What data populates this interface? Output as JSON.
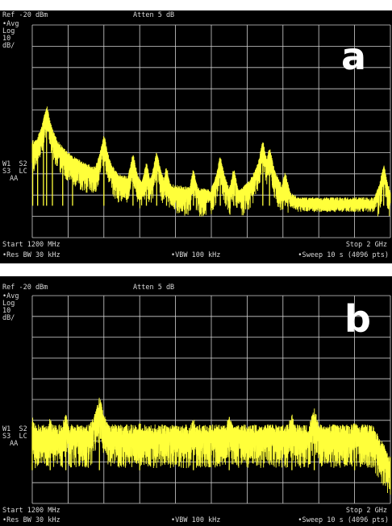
{
  "panels": [
    {
      "letter": "a",
      "ref": "Ref -20 dBm",
      "atten": "Atten 5 dB",
      "avg": "•Avg",
      "log": "Log",
      "scale_num": "10",
      "scale_unit": "dB/",
      "w1s2": "W1  S2",
      "s3lc": "S3  LC",
      "aa": "AA",
      "start": "Start 1200 MHz",
      "stop": "Stop 2 GHz",
      "rbw": "•Res BW 30 kHz",
      "vbw": "•VBW 100 kHz",
      "sweep": "•Sweep 10 s (4096 pts)"
    },
    {
      "letter": "b",
      "ref": "Ref -20 dBm",
      "atten": "Atten 5 dB",
      "avg": "•Avg",
      "log": "Log",
      "scale_num": "10",
      "scale_unit": "dB/",
      "w1s2": "W1  S2",
      "s3lc": "S3  LC",
      "aa": "AA",
      "start": "Start 1200 MHz",
      "stop": "Stop 2 GHz",
      "rbw": "•Res BW 30 kHz",
      "vbw": "•VBW 100 kHz",
      "sweep": "•Sweep 10 s (4096 pts)"
    }
  ],
  "colors": {
    "trace": "#ffff3a",
    "grid": "#d0d0d0",
    "background": "#000000",
    "text": "#d8d8d8"
  },
  "chart_data": [
    {
      "type": "line",
      "x_unit": "MHz",
      "xlim": [
        1200,
        2000
      ],
      "y_unit": "dBm",
      "ylim": [
        -120,
        -20
      ],
      "noise_floor": -103,
      "peaks": [
        {
          "x": 1201,
          "y": -76
        },
        {
          "x": 1212,
          "y": -82
        },
        {
          "x": 1225,
          "y": -68
        },
        {
          "x": 1232,
          "y": -60
        },
        {
          "x": 1245,
          "y": -78
        },
        {
          "x": 1268,
          "y": -86
        },
        {
          "x": 1290,
          "y": -87
        },
        {
          "x": 1360,
          "y": -74
        },
        {
          "x": 1425,
          "y": -83
        },
        {
          "x": 1455,
          "y": -87
        },
        {
          "x": 1478,
          "y": -82
        },
        {
          "x": 1500,
          "y": -89
        },
        {
          "x": 1560,
          "y": -90
        },
        {
          "x": 1620,
          "y": -84
        },
        {
          "x": 1650,
          "y": -90
        },
        {
          "x": 1715,
          "y": -77
        },
        {
          "x": 1730,
          "y": -80
        },
        {
          "x": 1765,
          "y": -91
        },
        {
          "x": 1985,
          "y": -88
        }
      ]
    },
    {
      "type": "line",
      "x_unit": "MHz",
      "xlim": [
        1200,
        2000
      ],
      "y_unit": "dBm",
      "ylim": [
        -120,
        -20
      ],
      "noise_floor": -102,
      "band_level": -87,
      "peaks": [
        {
          "x": 1200,
          "y": -83
        },
        {
          "x": 1240,
          "y": -84
        },
        {
          "x": 1275,
          "y": -82
        },
        {
          "x": 1350,
          "y": -74
        },
        {
          "x": 1440,
          "y": -86
        },
        {
          "x": 1560,
          "y": -84
        },
        {
          "x": 1640,
          "y": -83
        },
        {
          "x": 1780,
          "y": -82
        },
        {
          "x": 1830,
          "y": -79
        },
        {
          "x": 1920,
          "y": -84
        }
      ]
    }
  ]
}
